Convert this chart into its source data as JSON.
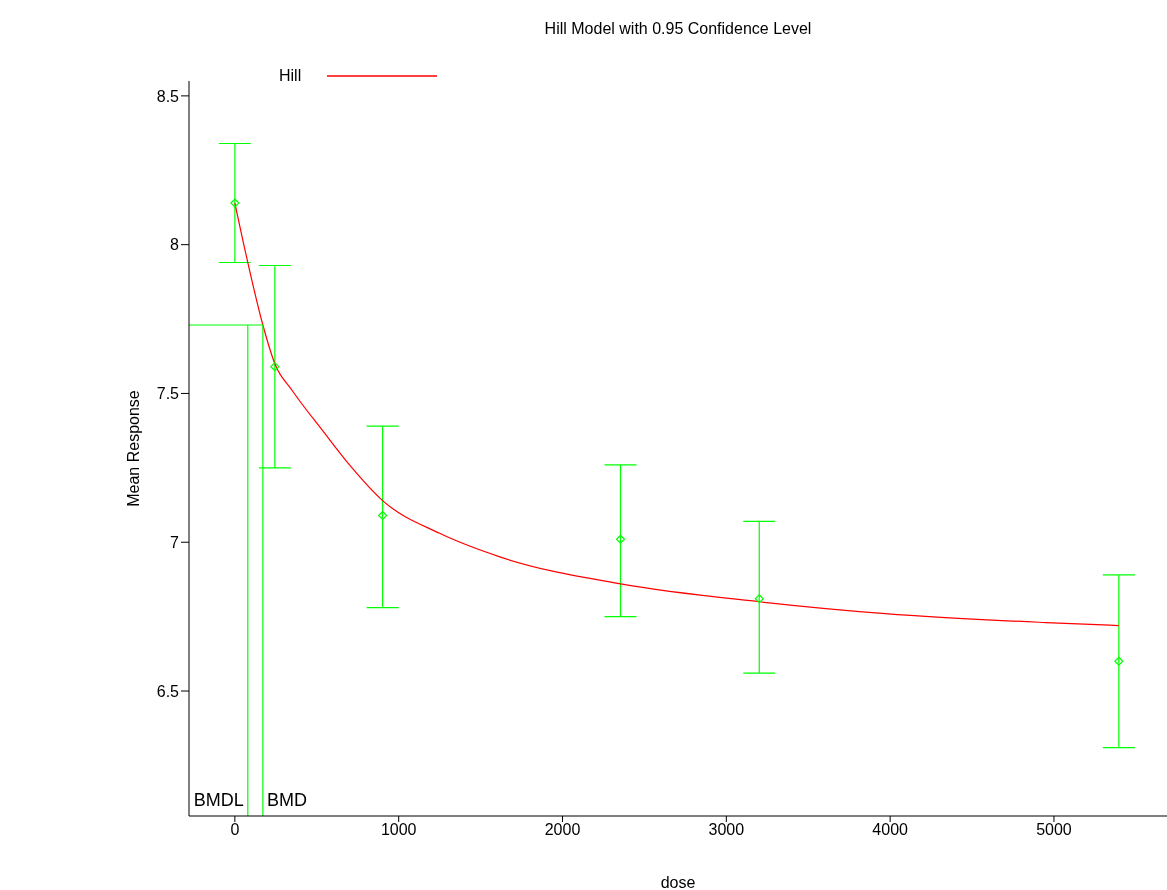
{
  "chart_data": {
    "type": "line",
    "title": "Hill Model with 0.95 Confidence Level",
    "xlabel": "dose",
    "ylabel": "Mean Response",
    "xlim": [
      -280,
      5690
    ],
    "xticks": [
      0,
      1000,
      2000,
      3000,
      4000,
      5000
    ],
    "ylim": [
      6.08,
      8.55
    ],
    "yticks": [
      6.5,
      7,
      7.5,
      8,
      8.5
    ],
    "legend": "top left",
    "series": [
      {
        "type": "scatter",
        "color": "#00ff00",
        "marker": "diamond",
        "x": [
          0,
          244,
          902,
          2354,
          3201,
          5396
        ],
        "values": [
          8.14,
          7.59,
          7.09,
          7.01,
          6.81,
          6.6
        ],
        "errors": [
          [
            7.94,
            8.34
          ],
          [
            7.25,
            7.93
          ],
          [
            6.78,
            7.39
          ],
          [
            6.75,
            7.26
          ],
          [
            6.56,
            7.07
          ],
          [
            6.31,
            6.89
          ]
        ]
      },
      {
        "name": "Hill",
        "color": "#ff0000",
        "marker": "none",
        "x": [
          0,
          79,
          171,
          244,
          350,
          543,
          700,
          902,
          1250,
          1622,
          2354,
          3201,
          3970,
          4951,
          5396
        ],
        "values": [
          8.14,
          7.94,
          7.73,
          7.6,
          7.51,
          7.37,
          7.26,
          7.14,
          7.03,
          6.95,
          6.86,
          6.8,
          6.76,
          6.73,
          6.72
        ]
      },
      {
        "color": "#00ff00",
        "marker": "none",
        "x": [
          -280,
          171,
          171
        ],
        "values": [
          7.73,
          7.73,
          6.08
        ]
      },
      {
        "color": "#00ff00",
        "marker": "none",
        "x": [
          79,
          79
        ],
        "values": [
          7.73,
          6.08
        ]
      }
    ],
    "annotations": [
      {
        "text": "BMDL",
        "x": 79,
        "y": 6.08
      },
      {
        "text": "BMD",
        "x": 171,
        "y": 6.08
      }
    ]
  }
}
